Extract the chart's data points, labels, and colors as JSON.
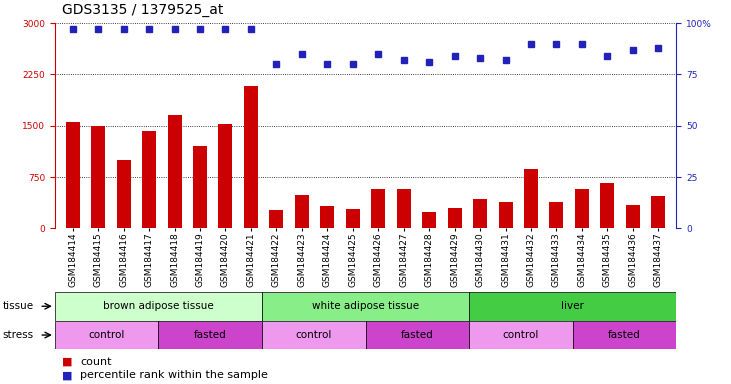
{
  "title": "GDS3135 / 1379525_at",
  "samples": [
    "GSM184414",
    "GSM184415",
    "GSM184416",
    "GSM184417",
    "GSM184418",
    "GSM184419",
    "GSM184420",
    "GSM184421",
    "GSM184422",
    "GSM184423",
    "GSM184424",
    "GSM184425",
    "GSM184426",
    "GSM184427",
    "GSM184428",
    "GSM184429",
    "GSM184430",
    "GSM184431",
    "GSM184432",
    "GSM184433",
    "GSM184434",
    "GSM184435",
    "GSM184436",
    "GSM184437"
  ],
  "counts": [
    1560,
    1490,
    1000,
    1420,
    1650,
    1200,
    1530,
    2080,
    270,
    490,
    330,
    280,
    580,
    580,
    240,
    300,
    430,
    380,
    870,
    380,
    580,
    660,
    340,
    480
  ],
  "percentile_ranks": [
    97,
    97,
    97,
    97,
    97,
    97,
    97,
    97,
    80,
    85,
    80,
    80,
    85,
    82,
    81,
    84,
    83,
    82,
    90,
    90,
    90,
    84,
    87,
    88
  ],
  "bar_color": "#cc0000",
  "dot_color": "#2222bb",
  "left_ylim": [
    0,
    3000
  ],
  "right_ylim": [
    0,
    100
  ],
  "left_yticks": [
    0,
    750,
    1500,
    2250,
    3000
  ],
  "right_yticks": [
    0,
    25,
    50,
    75,
    100
  ],
  "tissue_groups": [
    {
      "label": "brown adipose tissue",
      "start": 0,
      "end": 8,
      "color": "#ccffcc"
    },
    {
      "label": "white adipose tissue",
      "start": 8,
      "end": 16,
      "color": "#88ee88"
    },
    {
      "label": "liver",
      "start": 16,
      "end": 24,
      "color": "#44cc44"
    }
  ],
  "stress_groups": [
    {
      "label": "control",
      "start": 0,
      "end": 4,
      "color": "#ee99ee"
    },
    {
      "label": "fasted",
      "start": 4,
      "end": 8,
      "color": "#cc44cc"
    },
    {
      "label": "control",
      "start": 8,
      "end": 12,
      "color": "#ee99ee"
    },
    {
      "label": "fasted",
      "start": 12,
      "end": 16,
      "color": "#cc44cc"
    },
    {
      "label": "control",
      "start": 16,
      "end": 20,
      "color": "#ee99ee"
    },
    {
      "label": "fasted",
      "start": 20,
      "end": 24,
      "color": "#cc44cc"
    }
  ],
  "bg_color": "#ffffff",
  "plot_bg": "#ffffff",
  "grid_color": "#000000",
  "title_fontsize": 10,
  "tick_fontsize": 6.5,
  "row_fontsize": 7.5,
  "legend_fontsize": 8
}
